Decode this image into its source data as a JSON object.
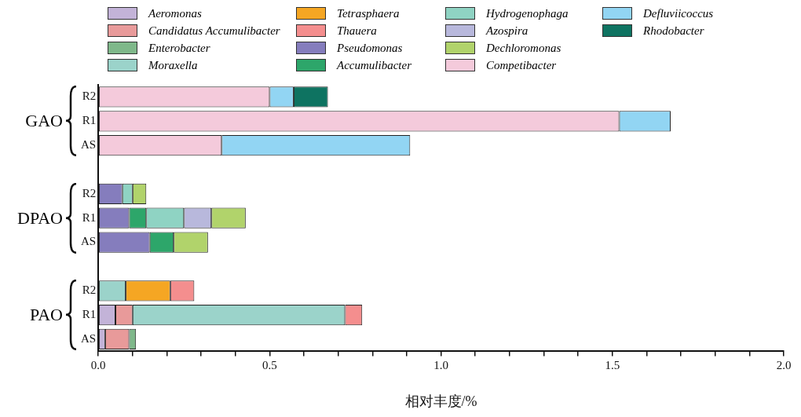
{
  "chart_data": {
    "type": "bar",
    "orientation": "horizontal",
    "stacked": true,
    "xlabel": "相对丰度/%",
    "categories": [
      "R2",
      "R1",
      "AS",
      null,
      "R2",
      "R1",
      "AS",
      null,
      "R2",
      "R1",
      "AS"
    ],
    "annotations": [
      "GAO",
      "DPAO",
      "PAO"
    ],
    "xlim": [
      0,
      2.0
    ],
    "xticks": [
      {
        "value": 0,
        "label": "0.0"
      },
      {
        "value": 0.1,
        "label": null
      },
      {
        "value": 0.2,
        "label": null
      },
      {
        "value": 0.3,
        "label": null
      },
      {
        "value": 0.4,
        "label": null
      },
      {
        "value": 0.5,
        "label": "0.5"
      },
      {
        "value": 0.6,
        "label": null
      },
      {
        "value": 0.7,
        "label": null
      },
      {
        "value": 0.8,
        "label": null
      },
      {
        "value": 0.9,
        "label": null
      },
      {
        "value": 1.0,
        "label": "1.0"
      },
      {
        "value": 1.1,
        "label": null
      },
      {
        "value": 1.2,
        "label": null
      },
      {
        "value": 1.3,
        "label": null
      },
      {
        "value": 1.4,
        "label": null
      },
      {
        "value": 1.5,
        "label": "1.5"
      },
      {
        "value": 1.6,
        "label": null
      },
      {
        "value": 1.7,
        "label": null
      },
      {
        "value": 1.8,
        "label": null
      },
      {
        "value": 1.9,
        "label": null
      },
      {
        "value": 2.0,
        "label": "2.0"
      }
    ],
    "legend": "top",
    "series": [
      {
        "name": "Aeromonas",
        "color": "#c3b3d8",
        "values": [
          null,
          null,
          null,
          null,
          null,
          null,
          null,
          null,
          null,
          0.05,
          0.02
        ]
      },
      {
        "name": "Candidatus Accumulibacter",
        "color": "#e89a9a",
        "values": [
          null,
          null,
          null,
          null,
          null,
          null,
          null,
          null,
          null,
          0.05,
          0.07
        ]
      },
      {
        "name": "Enterobacter",
        "color": "#7fb88a",
        "values": [
          null,
          null,
          null,
          null,
          null,
          null,
          null,
          null,
          null,
          null,
          0.02
        ]
      },
      {
        "name": "Moraxella",
        "color": "#9bd3ca",
        "values": [
          null,
          null,
          null,
          null,
          null,
          null,
          null,
          null,
          0.08,
          0.62,
          null
        ]
      },
      {
        "name": "Tetrasphaera",
        "color": "#f5a623",
        "values": [
          null,
          null,
          null,
          null,
          null,
          null,
          null,
          null,
          0.13,
          null,
          null
        ]
      },
      {
        "name": "Thauera",
        "color": "#f48e8e",
        "values": [
          null,
          null,
          null,
          null,
          null,
          null,
          null,
          null,
          0.07,
          0.05,
          null
        ]
      },
      {
        "name": "Pseudomonas",
        "color": "#857dbd",
        "values": [
          null,
          null,
          null,
          null,
          0.07,
          0.09,
          0.15,
          null,
          null,
          null,
          null
        ]
      },
      {
        "name": "Accumulibacter",
        "color": "#2da66a",
        "values": [
          null,
          null,
          null,
          null,
          null,
          0.05,
          0.07,
          null,
          null,
          null,
          null
        ]
      },
      {
        "name": "Hydrogenophaga",
        "color": "#8fd3c3",
        "values": [
          null,
          null,
          null,
          null,
          0.03,
          0.11,
          null,
          null,
          null,
          null,
          null
        ]
      },
      {
        "name": "Azospira",
        "color": "#b8b8dc",
        "values": [
          null,
          null,
          null,
          null,
          null,
          0.08,
          null,
          null,
          null,
          null,
          null
        ]
      },
      {
        "name": "Dechloromonas",
        "color": "#b1d36b",
        "values": [
          null,
          null,
          null,
          null,
          0.04,
          0.1,
          0.1,
          null,
          null,
          null,
          null
        ]
      },
      {
        "name": "Competibacter",
        "color": "#f4cadb",
        "values": [
          0.5,
          1.52,
          0.36,
          null,
          null,
          null,
          null,
          null,
          null,
          null,
          null
        ]
      },
      {
        "name": "Defluviicoccus",
        "color": "#92d5f3",
        "values": [
          0.07,
          0.15,
          0.55,
          null,
          null,
          null,
          null,
          null,
          null,
          null,
          null
        ]
      },
      {
        "name": "Rhodobacter",
        "color": "#0e7361",
        "values": [
          0.1,
          null,
          null,
          null,
          null,
          null,
          null,
          null,
          null,
          null,
          null
        ]
      }
    ]
  }
}
